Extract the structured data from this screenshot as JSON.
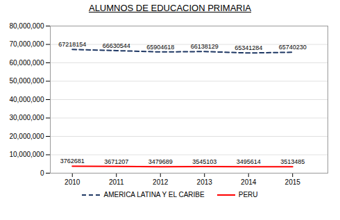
{
  "chart_data": {
    "type": "line",
    "title": "ALUMNOS DE EDUCACION PRIMARIA",
    "x": [
      2010,
      2011,
      2012,
      2013,
      2014,
      2015
    ],
    "series": [
      {
        "name": "AMERICA LATINA Y EL CARIBE",
        "color": "#1F3864",
        "line_style": "dashed",
        "values": [
          67218154,
          66630544,
          65904618,
          66138129,
          65341284,
          65740230
        ]
      },
      {
        "name": "PERU",
        "color": "#FF0000",
        "line_style": "solid",
        "values": [
          3762681,
          3671207,
          3479689,
          3545103,
          3495614,
          3513485
        ]
      }
    ],
    "xlim": [
      2009.5,
      2015.8
    ],
    "xticks": [
      2010,
      2011,
      2012,
      2013,
      2014,
      2015
    ],
    "ylim": [
      0,
      80000000
    ],
    "yticks": [
      0,
      {
        "value": 10000000,
        "label": "10,000,000"
      },
      {
        "value": 20000000,
        "label": "20,000,000"
      },
      {
        "value": 30000000,
        "label": "30,000,000"
      },
      {
        "value": 40000000,
        "label": "40,000,000"
      },
      {
        "value": 50000000,
        "label": "50,000,000"
      },
      {
        "value": 60000000,
        "label": "60,000,000"
      },
      {
        "value": 70000000,
        "label": "70,000,000"
      },
      {
        "value": 80000000,
        "label": "80,000,000"
      }
    ],
    "grid": true,
    "data_labels": true,
    "legend": "bottom"
  }
}
